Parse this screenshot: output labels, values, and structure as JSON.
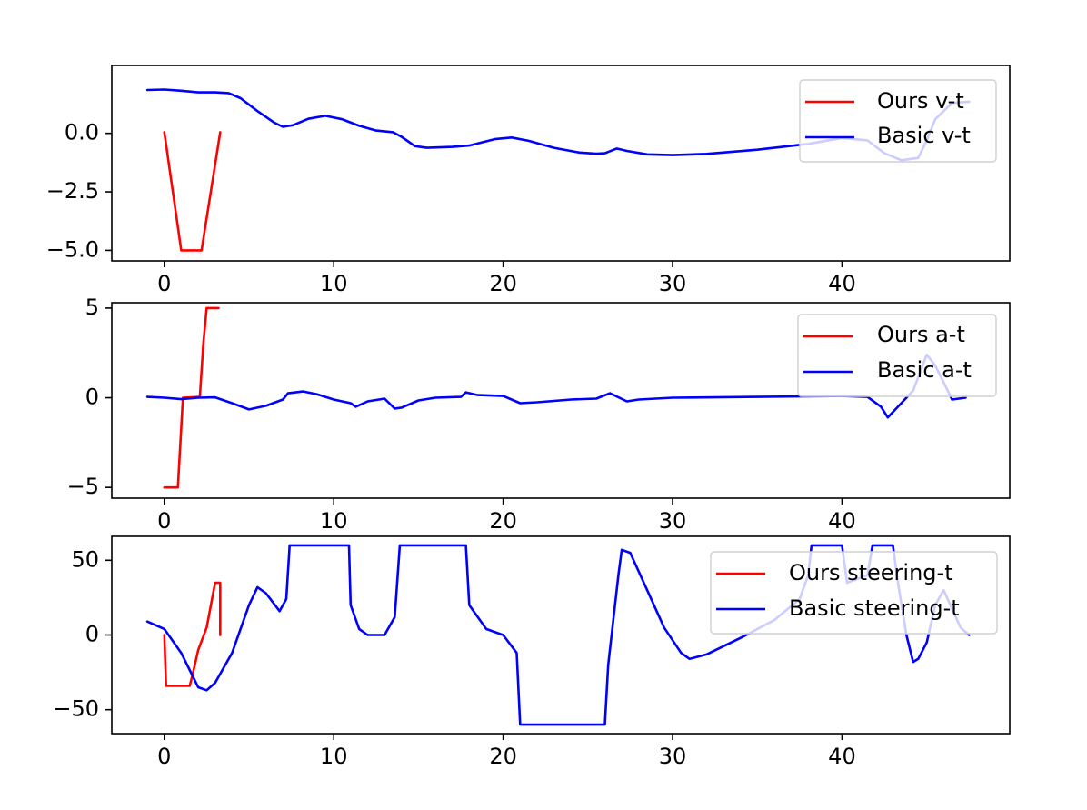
{
  "figure": {
    "background": "#ffffff"
  },
  "chart_data": [
    {
      "type": "line",
      "title": "",
      "xlabel": "",
      "ylabel": "",
      "xlim": [
        -3.1,
        49.9
      ],
      "ylim": [
        -5.45,
        2.9
      ],
      "xticks": [
        0,
        10,
        20,
        30,
        40
      ],
      "xtick_labels": [
        "0",
        "10",
        "20",
        "30",
        "40"
      ],
      "yticks": [
        0,
        -2.5,
        -5
      ],
      "ytick_labels": [
        "0.0",
        "−2.5",
        "−5.0"
      ],
      "grid": false,
      "legend": {
        "position": "top-right",
        "entries": [
          "Ours v-t",
          "Basic v-t"
        ]
      },
      "series": [
        {
          "name": "Ours v-t",
          "color": "#ff0000",
          "points": [
            [
              0,
              0.05
            ],
            [
              1,
              -5.0
            ],
            [
              2.2,
              -5.0
            ],
            [
              3.3,
              0.05
            ]
          ]
        },
        {
          "name": "Basic v-t",
          "color": "#0000ff",
          "points": [
            [
              -1,
              1.85
            ],
            [
              0,
              1.87
            ],
            [
              1,
              1.82
            ],
            [
              2,
              1.75
            ],
            [
              3,
              1.75
            ],
            [
              3.8,
              1.72
            ],
            [
              4.5,
              1.5
            ],
            [
              5.5,
              0.95
            ],
            [
              6.5,
              0.45
            ],
            [
              7,
              0.28
            ],
            [
              7.6,
              0.35
            ],
            [
              8.5,
              0.62
            ],
            [
              9.5,
              0.75
            ],
            [
              10.5,
              0.6
            ],
            [
              11.5,
              0.32
            ],
            [
              12.5,
              0.12
            ],
            [
              13.5,
              0.05
            ],
            [
              14,
              -0.15
            ],
            [
              14.8,
              -0.55
            ],
            [
              15.5,
              -0.62
            ],
            [
              17,
              -0.58
            ],
            [
              18,
              -0.52
            ],
            [
              19.5,
              -0.25
            ],
            [
              20.5,
              -0.18
            ],
            [
              21.5,
              -0.32
            ],
            [
              23,
              -0.62
            ],
            [
              24.5,
              -0.82
            ],
            [
              25.5,
              -0.87
            ],
            [
              26,
              -0.85
            ],
            [
              26.7,
              -0.65
            ],
            [
              27.3,
              -0.75
            ],
            [
              28.5,
              -0.9
            ],
            [
              30,
              -0.93
            ],
            [
              32,
              -0.88
            ],
            [
              35,
              -0.7
            ],
            [
              38,
              -0.45
            ],
            [
              40,
              -0.2
            ],
            [
              41.5,
              -0.3
            ],
            [
              42.5,
              -0.85
            ],
            [
              43.5,
              -1.15
            ],
            [
              44.5,
              -1.05
            ],
            [
              45,
              -0.3
            ],
            [
              45.5,
              0.6
            ],
            [
              46.5,
              1.3
            ],
            [
              47.5,
              1.35
            ]
          ]
        }
      ]
    },
    {
      "type": "line",
      "title": "",
      "xlabel": "",
      "ylabel": "",
      "xlim": [
        -3.1,
        49.9
      ],
      "ylim": [
        -5.6,
        5.3
      ],
      "xticks": [
        0,
        10,
        20,
        30,
        40
      ],
      "xtick_labels": [
        "0",
        "10",
        "20",
        "30",
        "40"
      ],
      "yticks": [
        5,
        0,
        -5
      ],
      "ytick_labels": [
        "5",
        "0",
        "−5"
      ],
      "grid": false,
      "legend": {
        "position": "top-right",
        "entries": [
          "Ours a-t",
          "Basic a-t"
        ]
      },
      "series": [
        {
          "name": "Ours a-t",
          "color": "#ff0000",
          "points": [
            [
              0,
              -5.0
            ],
            [
              0.8,
              -5.0
            ],
            [
              1.1,
              0.0
            ],
            [
              2.1,
              0.05
            ],
            [
              2.3,
              3.0
            ],
            [
              2.5,
              5.0
            ],
            [
              3.2,
              5.0
            ]
          ]
        },
        {
          "name": "Basic a-t",
          "color": "#0000ff",
          "points": [
            [
              -1,
              0.05
            ],
            [
              0,
              0.0
            ],
            [
              1,
              -0.08
            ],
            [
              2,
              0.0
            ],
            [
              3,
              0.02
            ],
            [
              4,
              -0.3
            ],
            [
              5,
              -0.65
            ],
            [
              6,
              -0.45
            ],
            [
              7,
              -0.1
            ],
            [
              7.3,
              0.25
            ],
            [
              8.2,
              0.35
            ],
            [
              9,
              0.2
            ],
            [
              10,
              -0.1
            ],
            [
              11,
              -0.3
            ],
            [
              11.3,
              -0.5
            ],
            [
              12,
              -0.2
            ],
            [
              13,
              -0.05
            ],
            [
              13.6,
              -0.6
            ],
            [
              14,
              -0.55
            ],
            [
              15,
              -0.15
            ],
            [
              16,
              0.0
            ],
            [
              17.5,
              0.05
            ],
            [
              17.8,
              0.3
            ],
            [
              18.5,
              0.15
            ],
            [
              20,
              0.1
            ],
            [
              21,
              -0.3
            ],
            [
              22,
              -0.25
            ],
            [
              24,
              -0.1
            ],
            [
              25.5,
              -0.05
            ],
            [
              26.3,
              0.25
            ],
            [
              27.3,
              -0.2
            ],
            [
              28,
              -0.1
            ],
            [
              30,
              0.0
            ],
            [
              35,
              0.05
            ],
            [
              40,
              0.1
            ],
            [
              41.5,
              0.05
            ],
            [
              42.3,
              -0.5
            ],
            [
              42.7,
              -1.1
            ],
            [
              43.3,
              -0.5
            ],
            [
              44.2,
              0.4
            ],
            [
              45,
              2.4
            ],
            [
              45.5,
              1.8
            ],
            [
              46.5,
              -0.1
            ],
            [
              47.3,
              0.0
            ]
          ]
        }
      ]
    },
    {
      "type": "line",
      "title": "",
      "xlabel": "",
      "ylabel": "",
      "xlim": [
        -3.1,
        49.9
      ],
      "ylim": [
        -66,
        66
      ],
      "xticks": [
        0,
        10,
        20,
        30,
        40
      ],
      "xtick_labels": [
        "0",
        "10",
        "20",
        "30",
        "40"
      ],
      "yticks": [
        50,
        0,
        -50
      ],
      "ytick_labels": [
        "50",
        "0",
        "−50"
      ],
      "grid": false,
      "legend": {
        "position": "top-right",
        "entries": [
          "Ours steering-t",
          "Basic steering-t"
        ]
      },
      "series": [
        {
          "name": "Ours steering-t",
          "color": "#ff0000",
          "points": [
            [
              0,
              0
            ],
            [
              0.1,
              -34
            ],
            [
              1.5,
              -34
            ],
            [
              1.7,
              -25
            ],
            [
              2,
              -10
            ],
            [
              2.5,
              5
            ],
            [
              3,
              35
            ],
            [
              3.3,
              35
            ],
            [
              3.3,
              0
            ]
          ]
        },
        {
          "name": "Basic steering-t",
          "color": "#0000ff",
          "points": [
            [
              -1,
              9
            ],
            [
              0,
              4
            ],
            [
              1,
              -12
            ],
            [
              2,
              -35
            ],
            [
              2.5,
              -37
            ],
            [
              3,
              -32
            ],
            [
              4,
              -12
            ],
            [
              5,
              20
            ],
            [
              5.5,
              32
            ],
            [
              6,
              28
            ],
            [
              6.8,
              16
            ],
            [
              7.2,
              24
            ],
            [
              7.4,
              60
            ],
            [
              10,
              60
            ],
            [
              10.9,
              60
            ],
            [
              11,
              20
            ],
            [
              11.5,
              4
            ],
            [
              12,
              0
            ],
            [
              13,
              0
            ],
            [
              13.6,
              12
            ],
            [
              13.9,
              60
            ],
            [
              17.8,
              60
            ],
            [
              18,
              20
            ],
            [
              19,
              4
            ],
            [
              20,
              0
            ],
            [
              20.8,
              -12
            ],
            [
              21,
              -60
            ],
            [
              26,
              -60
            ],
            [
              26.2,
              -20
            ],
            [
              26.8,
              40
            ],
            [
              27,
              57
            ],
            [
              27.5,
              55
            ],
            [
              28.5,
              30
            ],
            [
              29.5,
              5
            ],
            [
              30.5,
              -12
            ],
            [
              31,
              -16
            ],
            [
              32,
              -13
            ],
            [
              34,
              -2
            ],
            [
              36,
              10
            ],
            [
              37.5,
              24
            ],
            [
              38,
              40
            ],
            [
              38.2,
              60
            ],
            [
              40,
              60
            ],
            [
              40.3,
              35
            ],
            [
              41.5,
              40
            ],
            [
              41.8,
              60
            ],
            [
              43,
              60
            ],
            [
              43.3,
              35
            ],
            [
              43.8,
              0
            ],
            [
              44.2,
              -18
            ],
            [
              44.5,
              -16
            ],
            [
              45,
              -5
            ],
            [
              45.5,
              20
            ],
            [
              46,
              30
            ],
            [
              47,
              5
            ],
            [
              47.5,
              0
            ]
          ]
        }
      ]
    }
  ]
}
